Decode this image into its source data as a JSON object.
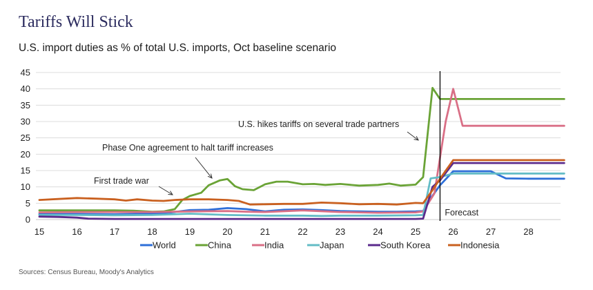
{
  "header": {
    "title": "Tariffs Will Stick",
    "subtitle": "U.S. import duties as % of total U.S. imports, Oct baseline scenario"
  },
  "footer": {
    "source": "Sources: Census Bureau, Moody's Analytics"
  },
  "chart_data": {
    "type": "line",
    "title": "Tariffs Will Stick",
    "subtitle": "U.S. import duties as % of total U.S. imports, Oct baseline scenario",
    "xlabel": "",
    "ylabel": "",
    "xlim": [
      15,
      28.95
    ],
    "ylim": [
      0,
      45
    ],
    "yticks": [
      0,
      5,
      10,
      15,
      20,
      25,
      30,
      35,
      40,
      45
    ],
    "xticks": [
      "15",
      "16",
      "17",
      "18",
      "19",
      "20",
      "21",
      "22",
      "23",
      "24",
      "25",
      "26",
      "27",
      "28"
    ],
    "grid": "horizontal",
    "legend_position": "bottom",
    "forecast_start": 25.65,
    "forecast_label": "Forecast",
    "annotations": [
      {
        "text": "First trade war",
        "points_to": [
          18.3,
          6.2
        ]
      },
      {
        "text": "Phase One agreement to halt tariff increases",
        "points_to": [
          19.7,
          10.5
        ]
      },
      {
        "text": "U.S. hikes tariffs on several trade partners",
        "points_to": [
          25.2,
          12.5
        ]
      }
    ],
    "series": [
      {
        "name": "World",
        "color": "#2e6fd8",
        "x": [
          15,
          16,
          17,
          18,
          18.5,
          19,
          19.5,
          20,
          20.5,
          21,
          21.5,
          22,
          22.5,
          23,
          23.5,
          24,
          24.5,
          25,
          25.2,
          25.4,
          25.65,
          26,
          26.5,
          27,
          27.4,
          28,
          28.95
        ],
        "y": [
          1.7,
          1.7,
          1.6,
          1.8,
          2.2,
          2.9,
          3.0,
          3.5,
          3.2,
          2.5,
          3.0,
          3.1,
          2.9,
          2.6,
          2.5,
          2.4,
          2.4,
          2.5,
          2.6,
          6.5,
          10.5,
          14.8,
          14.8,
          14.8,
          12.6,
          12.5,
          12.5
        ]
      },
      {
        "name": "China",
        "color": "#6aa336",
        "x": [
          15,
          16,
          17,
          17.5,
          18,
          18.3,
          18.6,
          18.8,
          19,
          19.3,
          19.5,
          19.8,
          20,
          20.2,
          20.4,
          20.7,
          21,
          21.3,
          21.6,
          22,
          22.3,
          22.6,
          23,
          23.5,
          24,
          24.3,
          24.6,
          25,
          25.2,
          25.45,
          25.65,
          26,
          27,
          28,
          28.95
        ],
        "y": [
          2.8,
          2.8,
          2.8,
          2.7,
          2.4,
          2.5,
          3.2,
          6.0,
          7.2,
          8.2,
          10.5,
          12.0,
          12.4,
          10.2,
          9.3,
          9.0,
          10.8,
          11.6,
          11.6,
          10.8,
          10.9,
          10.6,
          10.9,
          10.4,
          10.6,
          11.0,
          10.4,
          10.7,
          13.0,
          40.3,
          36.9,
          36.9,
          36.9,
          36.9,
          36.9
        ]
      },
      {
        "name": "India",
        "color": "#d96f86",
        "x": [
          15,
          16,
          17,
          18,
          19,
          20,
          20.5,
          21,
          22,
          23,
          24,
          25,
          25.2,
          25.5,
          25.8,
          26,
          26.25,
          27,
          28,
          28.95
        ],
        "y": [
          2.2,
          2.3,
          2.3,
          2.3,
          2.5,
          2.6,
          2.4,
          2.3,
          2.8,
          2.3,
          2.1,
          2.2,
          2.5,
          8.0,
          30.0,
          40.0,
          28.7,
          28.7,
          28.7,
          28.7
        ]
      },
      {
        "name": "Japan",
        "color": "#63bcc6",
        "x": [
          15,
          16,
          17,
          18,
          19,
          20,
          21,
          22,
          22.5,
          23,
          24,
          25,
          25.2,
          25.4,
          25.65,
          26,
          27,
          28,
          28.95
        ],
        "y": [
          1.4,
          1.4,
          1.3,
          1.4,
          1.8,
          1.4,
          1.2,
          1.2,
          1.1,
          1.2,
          1.2,
          1.3,
          1.4,
          12.6,
          13.0,
          14.1,
          14.1,
          14.1,
          14.1
        ]
      },
      {
        "name": "South Korea",
        "color": "#5b2a8c",
        "x": [
          15,
          15.5,
          16,
          16.3,
          17,
          18,
          19,
          20,
          21,
          22,
          23,
          24,
          25,
          25.2,
          25.45,
          25.65,
          26,
          27,
          28,
          28.95
        ],
        "y": [
          0.9,
          0.8,
          0.6,
          0.3,
          0.2,
          0.2,
          0.2,
          0.2,
          0.2,
          0.2,
          0.2,
          0.2,
          0.2,
          0.3,
          10.0,
          12.0,
          17.3,
          17.3,
          17.3,
          17.3
        ]
      },
      {
        "name": "Indonesia",
        "color": "#c9601f",
        "x": [
          15,
          15.5,
          16,
          16.5,
          17,
          17.3,
          17.6,
          18,
          18.3,
          18.6,
          19,
          19.5,
          20,
          20.3,
          20.6,
          21,
          21.5,
          22,
          22.5,
          23,
          23.5,
          24,
          24.5,
          25,
          25.2,
          25.45,
          25.65,
          26,
          27,
          28,
          28.95
        ],
        "y": [
          6.0,
          6.3,
          6.6,
          6.4,
          6.2,
          5.8,
          6.2,
          5.8,
          5.7,
          6.0,
          6.2,
          6.2,
          6.0,
          5.7,
          4.6,
          4.7,
          4.8,
          4.8,
          5.2,
          5.0,
          4.7,
          4.8,
          4.6,
          5.1,
          5.0,
          9.0,
          12.5,
          18.2,
          18.2,
          18.2,
          18.2
        ]
      }
    ]
  }
}
